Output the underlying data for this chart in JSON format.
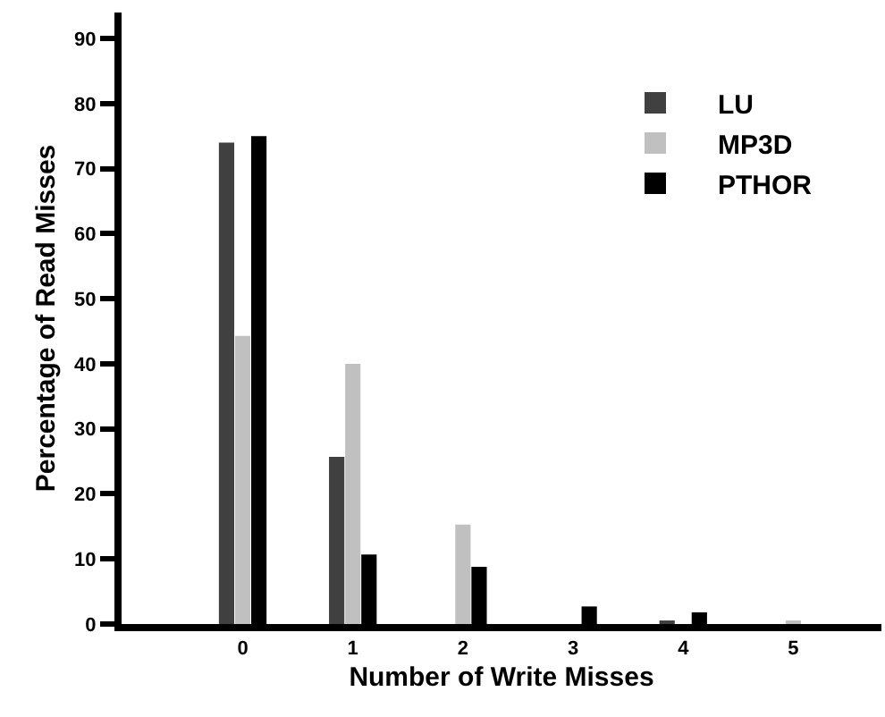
{
  "chart_data": {
    "type": "bar",
    "xlabel": "Number of Write Misses",
    "ylabel": "Percentage of Read Misses",
    "x": [
      0,
      1,
      2,
      3,
      4,
      5
    ],
    "xlim": [
      -1.1,
      5.8
    ],
    "xticks": [
      0,
      1,
      2,
      3,
      4,
      5
    ],
    "ylim": [
      0,
      94
    ],
    "yticks": [
      0,
      10,
      20,
      30,
      40,
      50,
      60,
      70,
      80,
      90
    ],
    "series": [
      {
        "name": "LU",
        "color": "#404040",
        "values": [
          74,
          25.7,
          0,
          0,
          0.3,
          0
        ]
      },
      {
        "name": "MP3D",
        "color": "#c0c0c0",
        "values": [
          44.3,
          40,
          15.3,
          0,
          0,
          0.3
        ]
      },
      {
        "name": "PTHOR",
        "color": "#000000",
        "values": [
          75,
          10.7,
          8.8,
          2.7,
          1.8,
          0
        ]
      }
    ],
    "grid": false,
    "legend": "top right"
  }
}
